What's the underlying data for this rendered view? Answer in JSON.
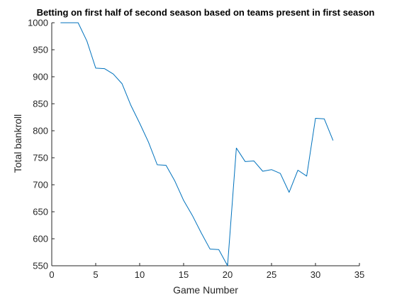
{
  "chart_data": {
    "type": "line",
    "title": "Betting on first half of second season based on teams present in first season",
    "xlabel": "Game Number",
    "ylabel": "Total bankroll",
    "xlim": [
      0,
      35
    ],
    "ylim": [
      550,
      1000
    ],
    "xticks": [
      0,
      5,
      10,
      15,
      20,
      25,
      30,
      35
    ],
    "yticks": [
      550,
      600,
      650,
      700,
      750,
      800,
      850,
      900,
      950,
      1000
    ],
    "xtick_labels": [
      "0",
      "5",
      "10",
      "15",
      "20",
      "25",
      "30",
      "35"
    ],
    "ytick_labels": [
      "550",
      "600",
      "650",
      "700",
      "750",
      "800",
      "850",
      "900",
      "950",
      "1000"
    ],
    "grid": false,
    "line_color": "#0072BD",
    "series": [
      {
        "x": [
          1,
          2,
          3,
          4,
          5,
          6,
          7,
          8,
          9,
          10,
          11,
          12,
          13,
          14,
          15,
          16,
          17,
          18,
          19,
          20,
          21,
          22,
          23,
          24,
          25,
          26,
          27,
          28,
          29,
          30,
          31,
          32
        ],
        "values": [
          1000,
          1000,
          1000,
          966,
          916,
          915,
          905,
          887,
          847,
          814,
          779,
          737,
          736,
          707,
          671,
          643,
          611,
          581,
          580,
          550,
          768,
          743,
          744,
          725,
          728,
          721,
          686,
          727,
          716,
          823,
          822,
          782
        ]
      }
    ]
  }
}
